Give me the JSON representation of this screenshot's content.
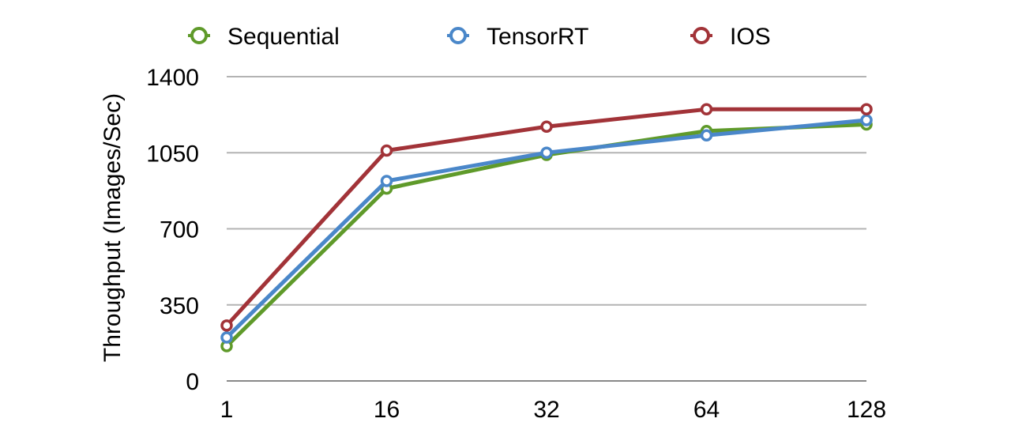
{
  "chart_data": {
    "type": "line",
    "x": [
      "1",
      "16",
      "32",
      "64",
      "128"
    ],
    "xlabel": "",
    "ylabel": "Throughput (Images/Sec)",
    "ylim": [
      0,
      1400
    ],
    "yticks": [
      0,
      350,
      700,
      1050,
      1400
    ],
    "grid": true,
    "legend_position": "top",
    "series": [
      {
        "name": "Sequential",
        "color": "#5f9a2a",
        "values": [
          160,
          885,
          1040,
          1150,
          1180
        ]
      },
      {
        "name": "TensorRT",
        "color": "#4a87c9",
        "values": [
          200,
          920,
          1050,
          1130,
          1200
        ]
      },
      {
        "name": "IOS",
        "color": "#a23338",
        "values": [
          255,
          1060,
          1170,
          1250,
          1250
        ]
      }
    ]
  }
}
